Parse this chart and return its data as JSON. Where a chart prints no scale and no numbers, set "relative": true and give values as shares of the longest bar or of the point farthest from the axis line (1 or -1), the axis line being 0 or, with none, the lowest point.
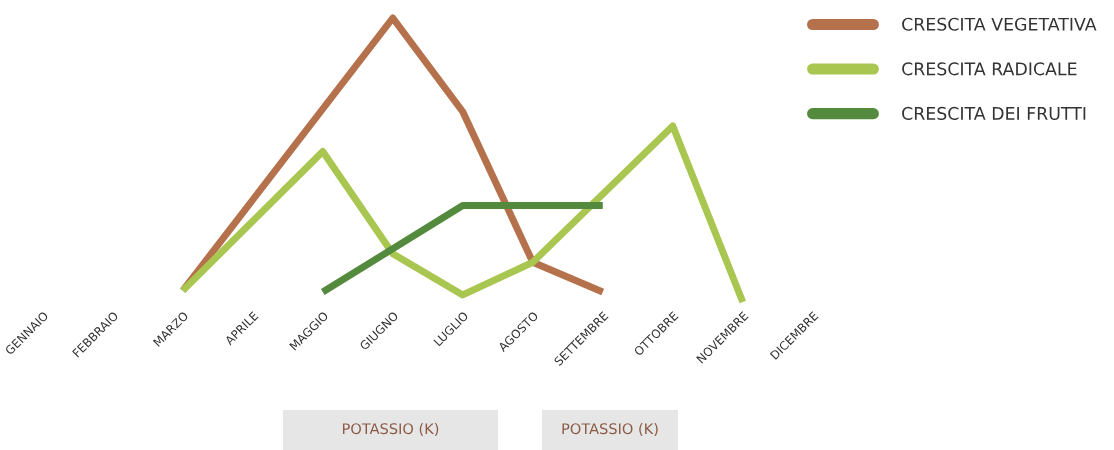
{
  "chart_data": {
    "type": "line",
    "relative": true,
    "legend": "top right",
    "grid": false,
    "marker": "none",
    "line_style": "solid",
    "categories": [
      "GENNAIO",
      "FEBBRAIO",
      "MARZO",
      "APRILE",
      "MAGGIO",
      "GIUGNO",
      "LUGLIO",
      "AGOSTO",
      "SETTEMBRE",
      "OTTOBRE",
      "NOVEMBRE",
      "DICEMBRE"
    ],
    "series": [
      {
        "name": "CRESCITA VEGETATIVA",
        "color": "#b5714c",
        "values": [
          null,
          null,
          0.04,
          null,
          null,
          1.0,
          0.67,
          0.14,
          0.035,
          null,
          null,
          null
        ]
      },
      {
        "name": "CRESCITA RADICALE",
        "color": "#a9c651",
        "values": [
          null,
          null,
          0.04,
          null,
          0.53,
          0.17,
          0.025,
          0.14,
          null,
          0.62,
          0.0,
          null
        ]
      },
      {
        "name": "CRESCITA DEI FRUTTI",
        "color": "#548a3e",
        "values": [
          null,
          null,
          null,
          null,
          0.035,
          null,
          0.34,
          null,
          0.34,
          null,
          null,
          null
        ]
      }
    ],
    "annotations": [
      "POTASSIO (K)",
      "POTASSIO (K)"
    ]
  }
}
